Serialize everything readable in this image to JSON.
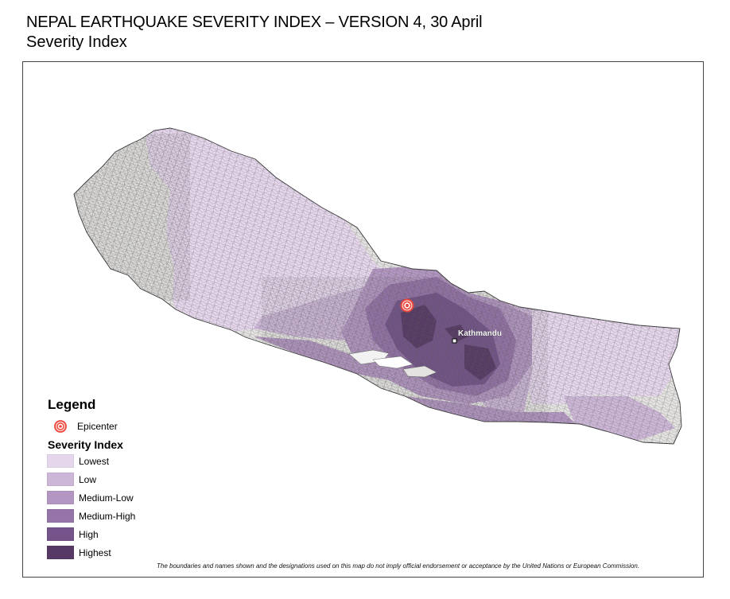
{
  "header": {
    "title": "NEPAL EARTHQUAKE SEVERITY INDEX – VERSION 4, 30 April",
    "subtitle": "Severity Index"
  },
  "map": {
    "city_label": "Kathmandu",
    "colors": {
      "no_data": "#e4e3e1",
      "boundary": "#5d5d5d",
      "epicenter": "#e8463c"
    }
  },
  "legend": {
    "title": "Legend",
    "epicenter_label": "Epicenter",
    "severity_title": "Severity Index",
    "items": [
      {
        "label": "Lowest",
        "color": "#e5d6ec"
      },
      {
        "label": "Low",
        "color": "#cdb7d8"
      },
      {
        "label": "Medium-Low",
        "color": "#b397c2"
      },
      {
        "label": "Medium-High",
        "color": "#9674a9"
      },
      {
        "label": "High",
        "color": "#74548a"
      },
      {
        "label": "Highest",
        "color": "#573966"
      }
    ]
  },
  "footer": {
    "disclaimer": "The boundaries and names shown and the designations used on this map do not imply official endorsement or acceptance by the United Nations or European Commission."
  }
}
